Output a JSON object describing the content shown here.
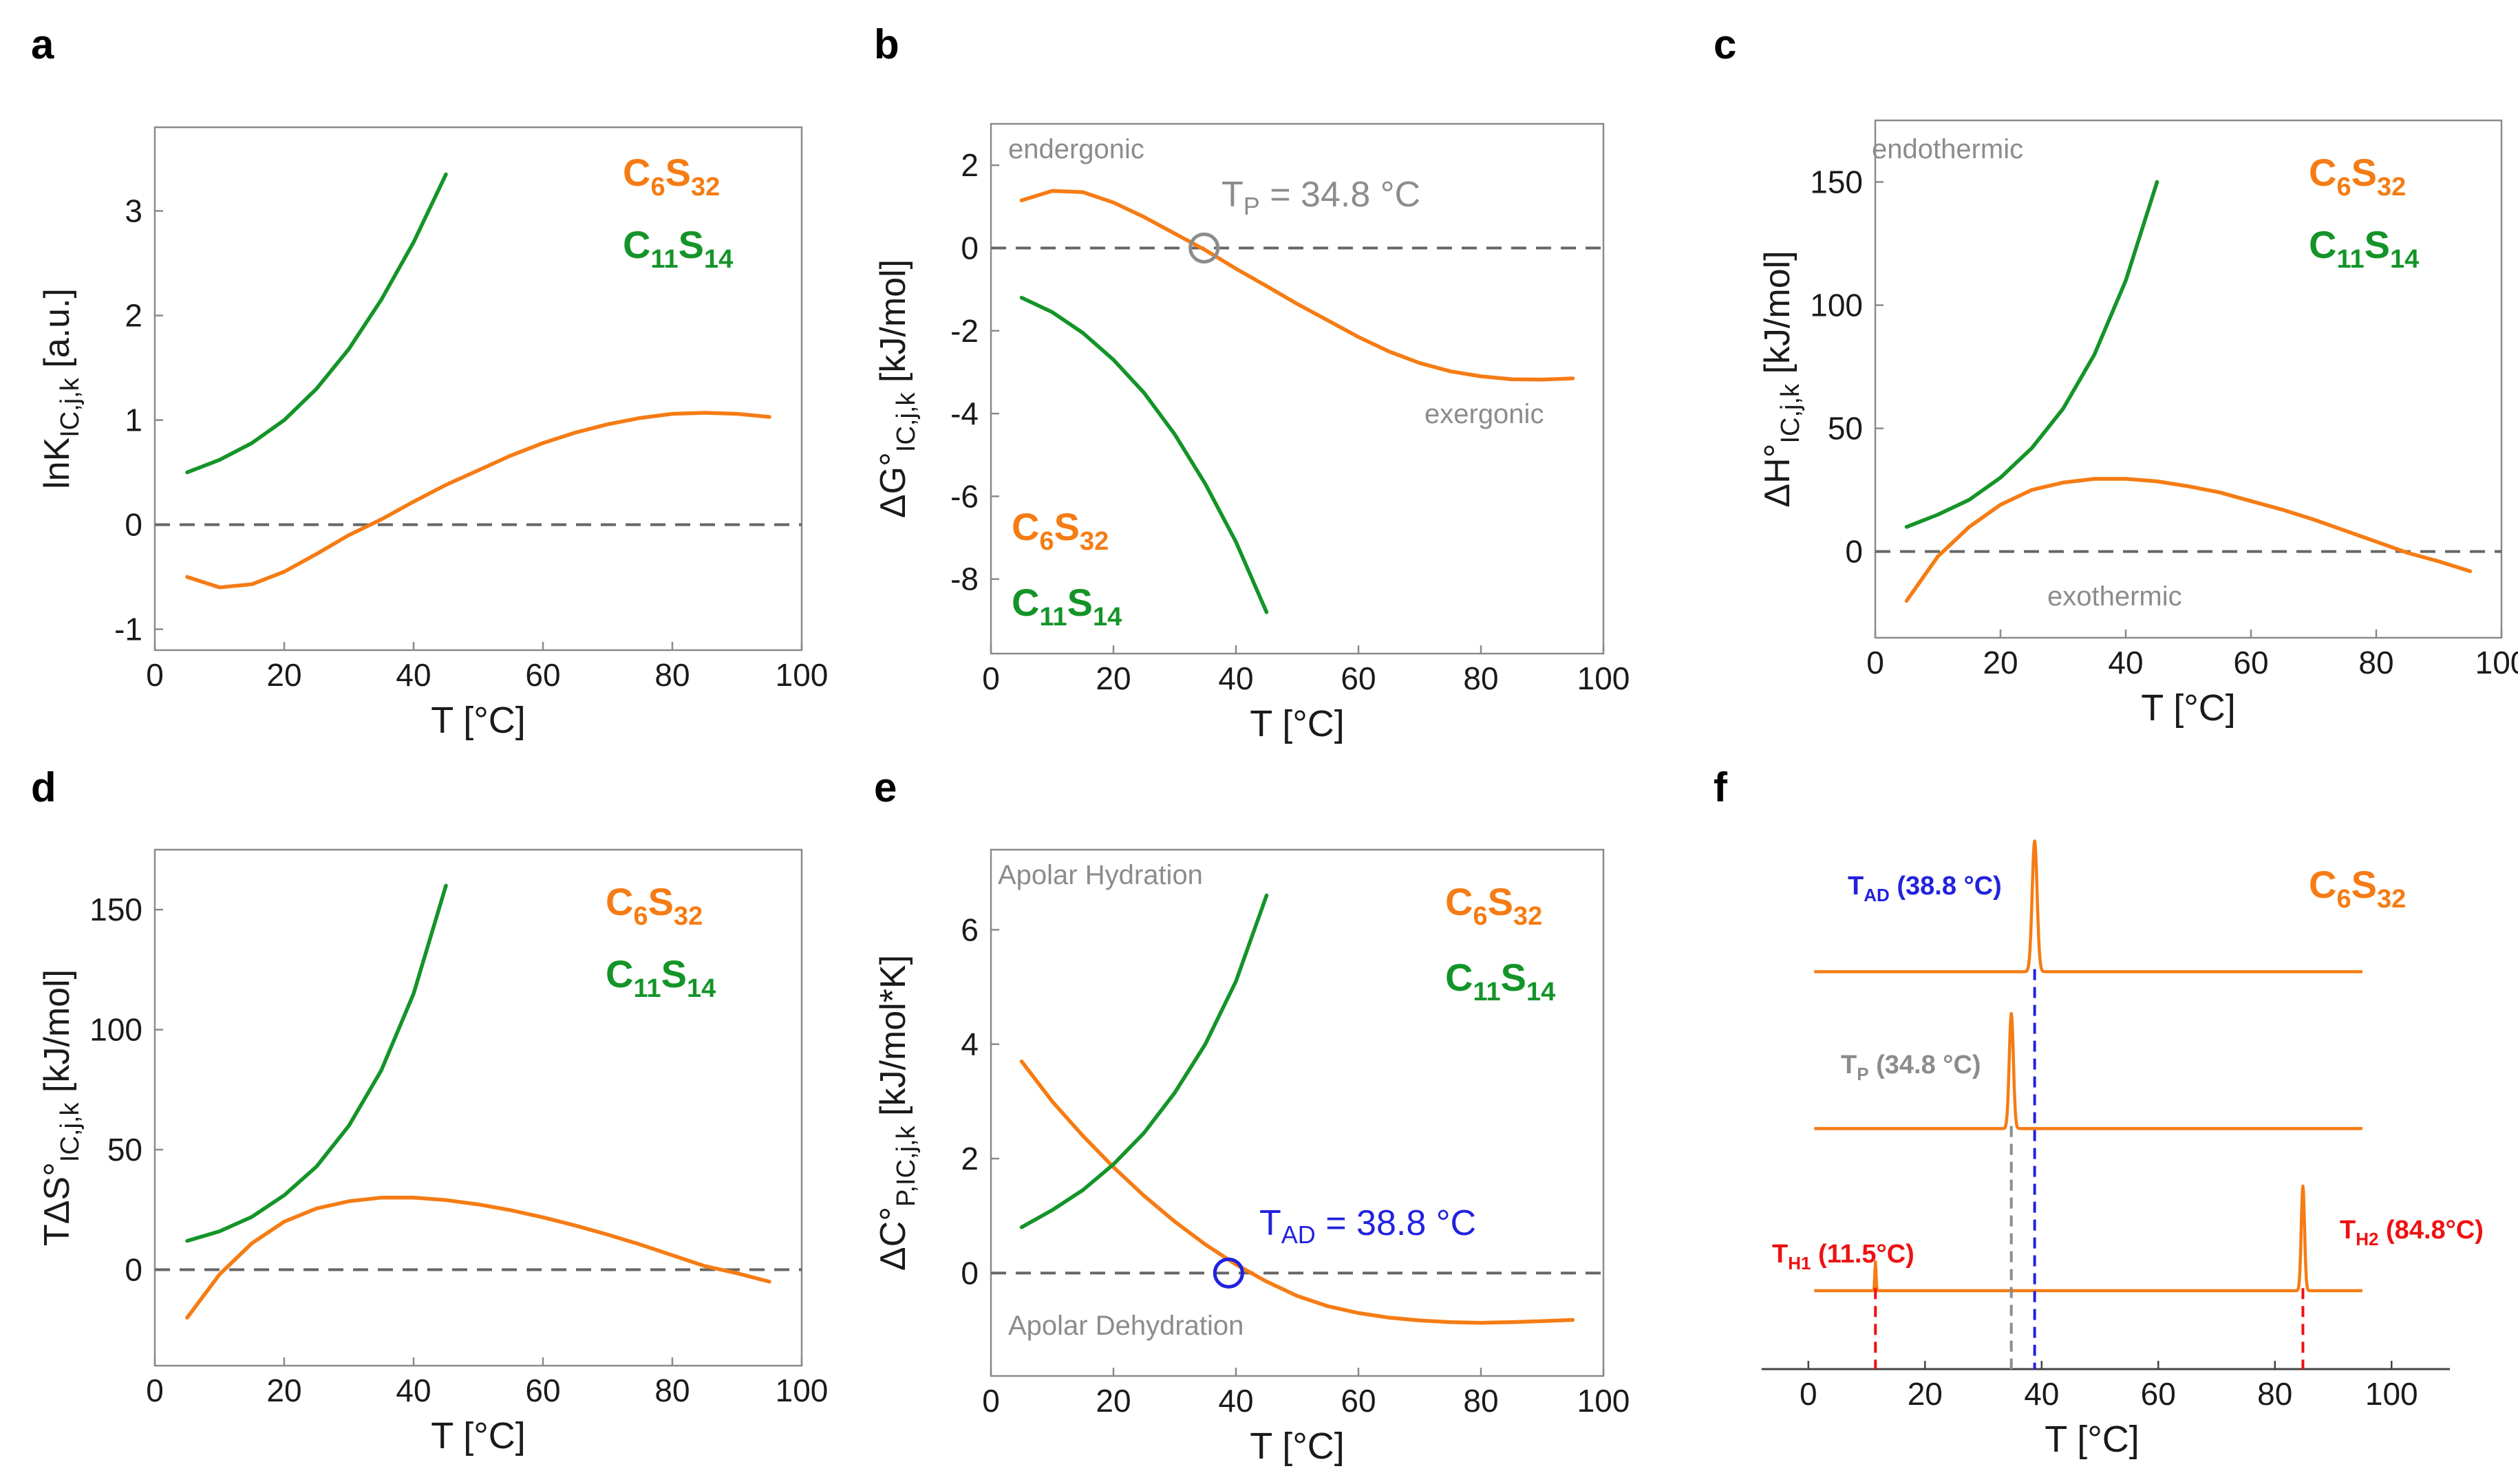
{
  "colors": {
    "orange": "#f57c14",
    "green": "#149428",
    "gray": "#8c8c8c",
    "blue": "#2222dd",
    "red": "#ee1111",
    "dash": "#666666"
  },
  "legend": {
    "c6_base": "C",
    "c6_sub1": "6",
    "c6_mid": "S",
    "c6_sub2": "32",
    "c11_base": "C",
    "c11_sub1": "11",
    "c11_mid": "S",
    "c11_sub2": "14"
  },
  "chart_data": [
    {
      "id": "a",
      "type": "line",
      "letter": "a",
      "xlabel": "T [°C]",
      "ylabel_main": "lnK",
      "ylabel_sub": "IC,j,k",
      "ylabel_tail": " [a.u.]",
      "xlim": [
        0,
        100
      ],
      "ylim": [
        -1.2,
        3.8
      ],
      "xticks": [
        0,
        20,
        40,
        60,
        80,
        100
      ],
      "yticks": [
        -1,
        0,
        1,
        2,
        3
      ],
      "series": [
        {
          "name": "C6S32",
          "color": "orange",
          "x": [
            5,
            10,
            15,
            20,
            25,
            30,
            35,
            40,
            45,
            50,
            55,
            60,
            65,
            70,
            75,
            80,
            85,
            90,
            95
          ],
          "y": [
            -0.5,
            -0.6,
            -0.57,
            -0.45,
            -0.28,
            -0.1,
            0.05,
            0.22,
            0.38,
            0.52,
            0.66,
            0.78,
            0.88,
            0.96,
            1.02,
            1.06,
            1.07,
            1.06,
            1.03
          ]
        },
        {
          "name": "C11S14",
          "color": "green",
          "x": [
            5,
            10,
            15,
            20,
            25,
            30,
            35,
            40,
            45
          ],
          "y": [
            0.5,
            0.62,
            0.78,
            1.0,
            1.3,
            1.68,
            2.15,
            2.7,
            3.35
          ]
        }
      ]
    },
    {
      "id": "b",
      "type": "line",
      "letter": "b",
      "xlabel": "T [°C]",
      "ylabel_main": "ΔG°",
      "ylabel_sub": "IC,j,k",
      "ylabel_tail": " [kJ/mol]",
      "xlim": [
        0,
        100
      ],
      "ylim": [
        -9.8,
        3.0
      ],
      "xticks": [
        0,
        20,
        40,
        60,
        80,
        100
      ],
      "yticks": [
        -8,
        -6,
        -4,
        -2,
        0,
        2
      ],
      "annotations": {
        "top": "endergonic",
        "bottom": "exergonic",
        "tp_main": "T",
        "tp_sub": "P",
        "tp_tail": " = 34.8 °C"
      },
      "marker": {
        "x": 34.8,
        "y": 0
      },
      "series": [
        {
          "name": "C6S32",
          "color": "orange",
          "x": [
            5,
            10,
            15,
            20,
            25,
            30,
            35,
            40,
            45,
            50,
            55,
            60,
            65,
            70,
            75,
            80,
            85,
            90,
            95
          ],
          "y": [
            1.15,
            1.38,
            1.35,
            1.1,
            0.75,
            0.35,
            -0.05,
            -0.5,
            -0.92,
            -1.35,
            -1.75,
            -2.15,
            -2.5,
            -2.78,
            -2.98,
            -3.1,
            -3.17,
            -3.18,
            -3.15
          ]
        },
        {
          "name": "C11S14",
          "color": "green",
          "x": [
            5,
            10,
            15,
            20,
            25,
            30,
            35,
            40,
            45
          ],
          "y": [
            -1.2,
            -1.55,
            -2.05,
            -2.7,
            -3.5,
            -4.5,
            -5.7,
            -7.1,
            -8.8
          ]
        }
      ]
    },
    {
      "id": "c",
      "type": "line",
      "letter": "c",
      "xlabel": "T [°C]",
      "ylabel_main": "ΔH°",
      "ylabel_sub": "IC,j,k",
      "ylabel_tail": " [kJ/mol]",
      "xlim": [
        0,
        100
      ],
      "ylim": [
        -35,
        175
      ],
      "xticks": [
        0,
        20,
        40,
        60,
        80,
        100
      ],
      "yticks": [
        0,
        50,
        100,
        150
      ],
      "annotations": {
        "top": "endothermic",
        "bottom": "exothermic"
      },
      "series": [
        {
          "name": "C6S32",
          "color": "orange",
          "x": [
            5,
            10,
            15,
            20,
            25,
            30,
            35,
            40,
            45,
            50,
            55,
            60,
            65,
            70,
            75,
            80,
            85,
            90,
            95
          ],
          "y": [
            -20,
            -2,
            10,
            19,
            25,
            28,
            29.5,
            29.5,
            28.5,
            26.5,
            24,
            20.5,
            17,
            13,
            8.5,
            4,
            -0.5,
            -4,
            -8
          ]
        },
        {
          "name": "C11S14",
          "color": "green",
          "x": [
            5,
            10,
            15,
            20,
            25,
            30,
            35,
            40,
            45
          ],
          "y": [
            10,
            15,
            21,
            30,
            42,
            58,
            80,
            110,
            150
          ]
        }
      ]
    },
    {
      "id": "d",
      "type": "line",
      "letter": "d",
      "xlabel": "T [°C]",
      "ylabel_main": "TΔS°",
      "ylabel_sub": "IC,j,k",
      "ylabel_tail": " [kJ/mol]",
      "xlim": [
        0,
        100
      ],
      "ylim": [
        -40,
        175
      ],
      "xticks": [
        0,
        20,
        40,
        60,
        80,
        100
      ],
      "yticks": [
        0,
        50,
        100,
        150
      ],
      "series": [
        {
          "name": "C6S32",
          "color": "orange",
          "x": [
            5,
            10,
            15,
            20,
            25,
            30,
            35,
            40,
            45,
            50,
            55,
            60,
            65,
            70,
            75,
            80,
            85,
            90,
            95
          ],
          "y": [
            -20,
            -2,
            11,
            20,
            25.5,
            28.5,
            30,
            30,
            29,
            27.2,
            24.8,
            21.8,
            18.4,
            14.6,
            10.5,
            6,
            1.5,
            -1.5,
            -5
          ]
        },
        {
          "name": "C11S14",
          "color": "green",
          "x": [
            5,
            10,
            15,
            20,
            25,
            30,
            35,
            40,
            45
          ],
          "y": [
            12,
            16,
            22,
            31,
            43,
            60,
            83,
            115,
            160
          ]
        }
      ]
    },
    {
      "id": "e",
      "type": "line",
      "letter": "e",
      "xlabel": "T [°C]",
      "ylabel_main": "ΔC°",
      "ylabel_sub": "P,IC,j,k",
      "ylabel_tail": " [kJ/mol*K]",
      "xlim": [
        0,
        100
      ],
      "ylim": [
        -1.8,
        7.4
      ],
      "xticks": [
        0,
        20,
        40,
        60,
        80,
        100
      ],
      "yticks": [
        0,
        2,
        4,
        6
      ],
      "annotations": {
        "top": "Apolar Hydration",
        "bottom": "Apolar Dehydration",
        "tad_main": "T",
        "tad_sub": "AD",
        "tad_tail": " = 38.8 °C"
      },
      "marker": {
        "x": 38.8,
        "y": 0
      },
      "series": [
        {
          "name": "C6S32",
          "color": "orange",
          "x": [
            5,
            10,
            15,
            20,
            25,
            30,
            35,
            40,
            45,
            50,
            55,
            60,
            65,
            70,
            75,
            80,
            85,
            90,
            95
          ],
          "y": [
            3.7,
            3.0,
            2.4,
            1.85,
            1.35,
            0.9,
            0.5,
            0.15,
            -0.15,
            -0.4,
            -0.58,
            -0.7,
            -0.78,
            -0.83,
            -0.86,
            -0.87,
            -0.86,
            -0.84,
            -0.82
          ]
        },
        {
          "name": "C11S14",
          "color": "green",
          "x": [
            5,
            10,
            15,
            20,
            25,
            30,
            35,
            40,
            45
          ],
          "y": [
            0.8,
            1.1,
            1.45,
            1.9,
            2.45,
            3.15,
            4.0,
            5.1,
            6.6
          ]
        }
      ]
    },
    {
      "id": "f",
      "type": "line",
      "letter": "f",
      "xlabel": "T [°C]",
      "xlim": [
        -8,
        110
      ],
      "ylim": [
        0,
        10
      ],
      "xticks": [
        0,
        20,
        40,
        60,
        80,
        100
      ],
      "baselines": [
        {
          "name": "top",
          "level": 7.6
        },
        {
          "name": "middle",
          "level": 4.6
        },
        {
          "name": "bottom",
          "level": 1.5
        }
      ],
      "trace_x_range": [
        1,
        95
      ],
      "peaks": [
        {
          "x": 38.8,
          "baseline": "top",
          "height": 2.5,
          "width": 0.6,
          "color": "blue",
          "label_main": "T",
          "label_sub": "AD",
          "label_tail": " (38.8 °C)"
        },
        {
          "x": 34.8,
          "baseline": "middle",
          "height": 2.2,
          "width": 0.5,
          "color": "gray",
          "label_main": "T",
          "label_sub": "P",
          "label_tail": " (34.8 °C)"
        },
        {
          "x": 11.5,
          "baseline": "bottom",
          "height": 0.55,
          "width": 0.15,
          "color": "red",
          "label_main": "T",
          "label_sub": "H1",
          "label_tail": " (11.5°C)"
        },
        {
          "x": 84.8,
          "baseline": "bottom",
          "height": 2.0,
          "width": 0.4,
          "color": "red",
          "label_main": "T",
          "label_sub": "H2",
          "label_tail": " (84.8°C)"
        }
      ]
    }
  ]
}
